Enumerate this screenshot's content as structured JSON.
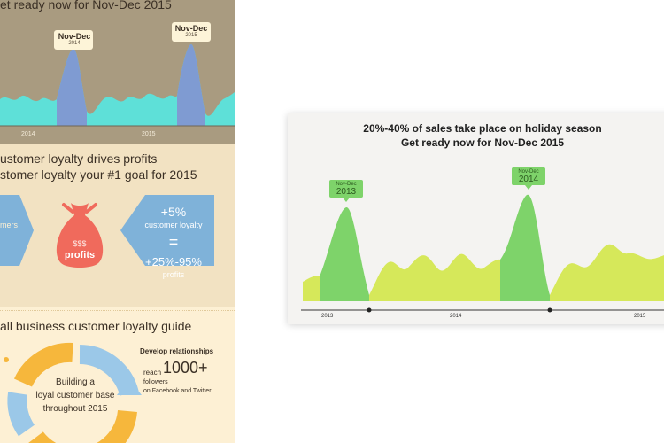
{
  "poster": {
    "header_fragment": "et ready now for Nov-Dec 2015",
    "peaks": [
      {
        "label": "Nov-Dec",
        "year": "2014"
      },
      {
        "label": "Nov-Dec",
        "year": "2015"
      }
    ],
    "axis_years": [
      "2014",
      "2015"
    ],
    "loyalty_title_1": "ustomer loyalty drives profits",
    "loyalty_title_2": "stomer loyalty your #1 goal for 2015",
    "left_hex_fragment": "mers",
    "bag_line1": "$$$",
    "bag_line2": "profits",
    "right_hex_line1": "+5%",
    "right_hex_line2": "customer loyalty",
    "right_hex_eq": "=",
    "right_hex_line3": "+25%-95%",
    "right_hex_line4": "profits",
    "guide_title": "all business customer loyalty guide",
    "cycle_text_1": "Building a",
    "cycle_text_2": "loyal customer base",
    "cycle_text_3": "throughout 2015",
    "develop_title": "Develop relationships",
    "reach_label": "reach",
    "reach_number": "1000+",
    "followers_label": "followers",
    "followers_where": "on Facebook and Twitter"
  },
  "card": {
    "title_line1": "20%-40% of sales take place on holiday season",
    "title_line2": "Get ready now for Nov-Dec 2015",
    "peaks": [
      {
        "label": "Nov-Dec",
        "year": "2013"
      },
      {
        "label": "Nov-Dec",
        "year": "2014"
      }
    ],
    "axis_years": [
      "2013",
      "2014",
      "2015"
    ]
  },
  "colors": {
    "poster_top_bg": "#a99b80",
    "poster_mid_bg": "#f2e2c2",
    "poster_bottom_bg": "#fdf0d4",
    "teal_area": "#5ee0d8",
    "blue_peak": "#7f9bd2",
    "hex_blue": "#7fb2d9",
    "bag_red": "#f06a5c",
    "cycle_orange": "#f6b73c",
    "cycle_blue": "#9bc8e8",
    "card_bg": "#f4f3f1",
    "lime_area": "#d6e85a",
    "green_peak": "#7ed36a",
    "peak_tag_green": "#7ed36a"
  }
}
